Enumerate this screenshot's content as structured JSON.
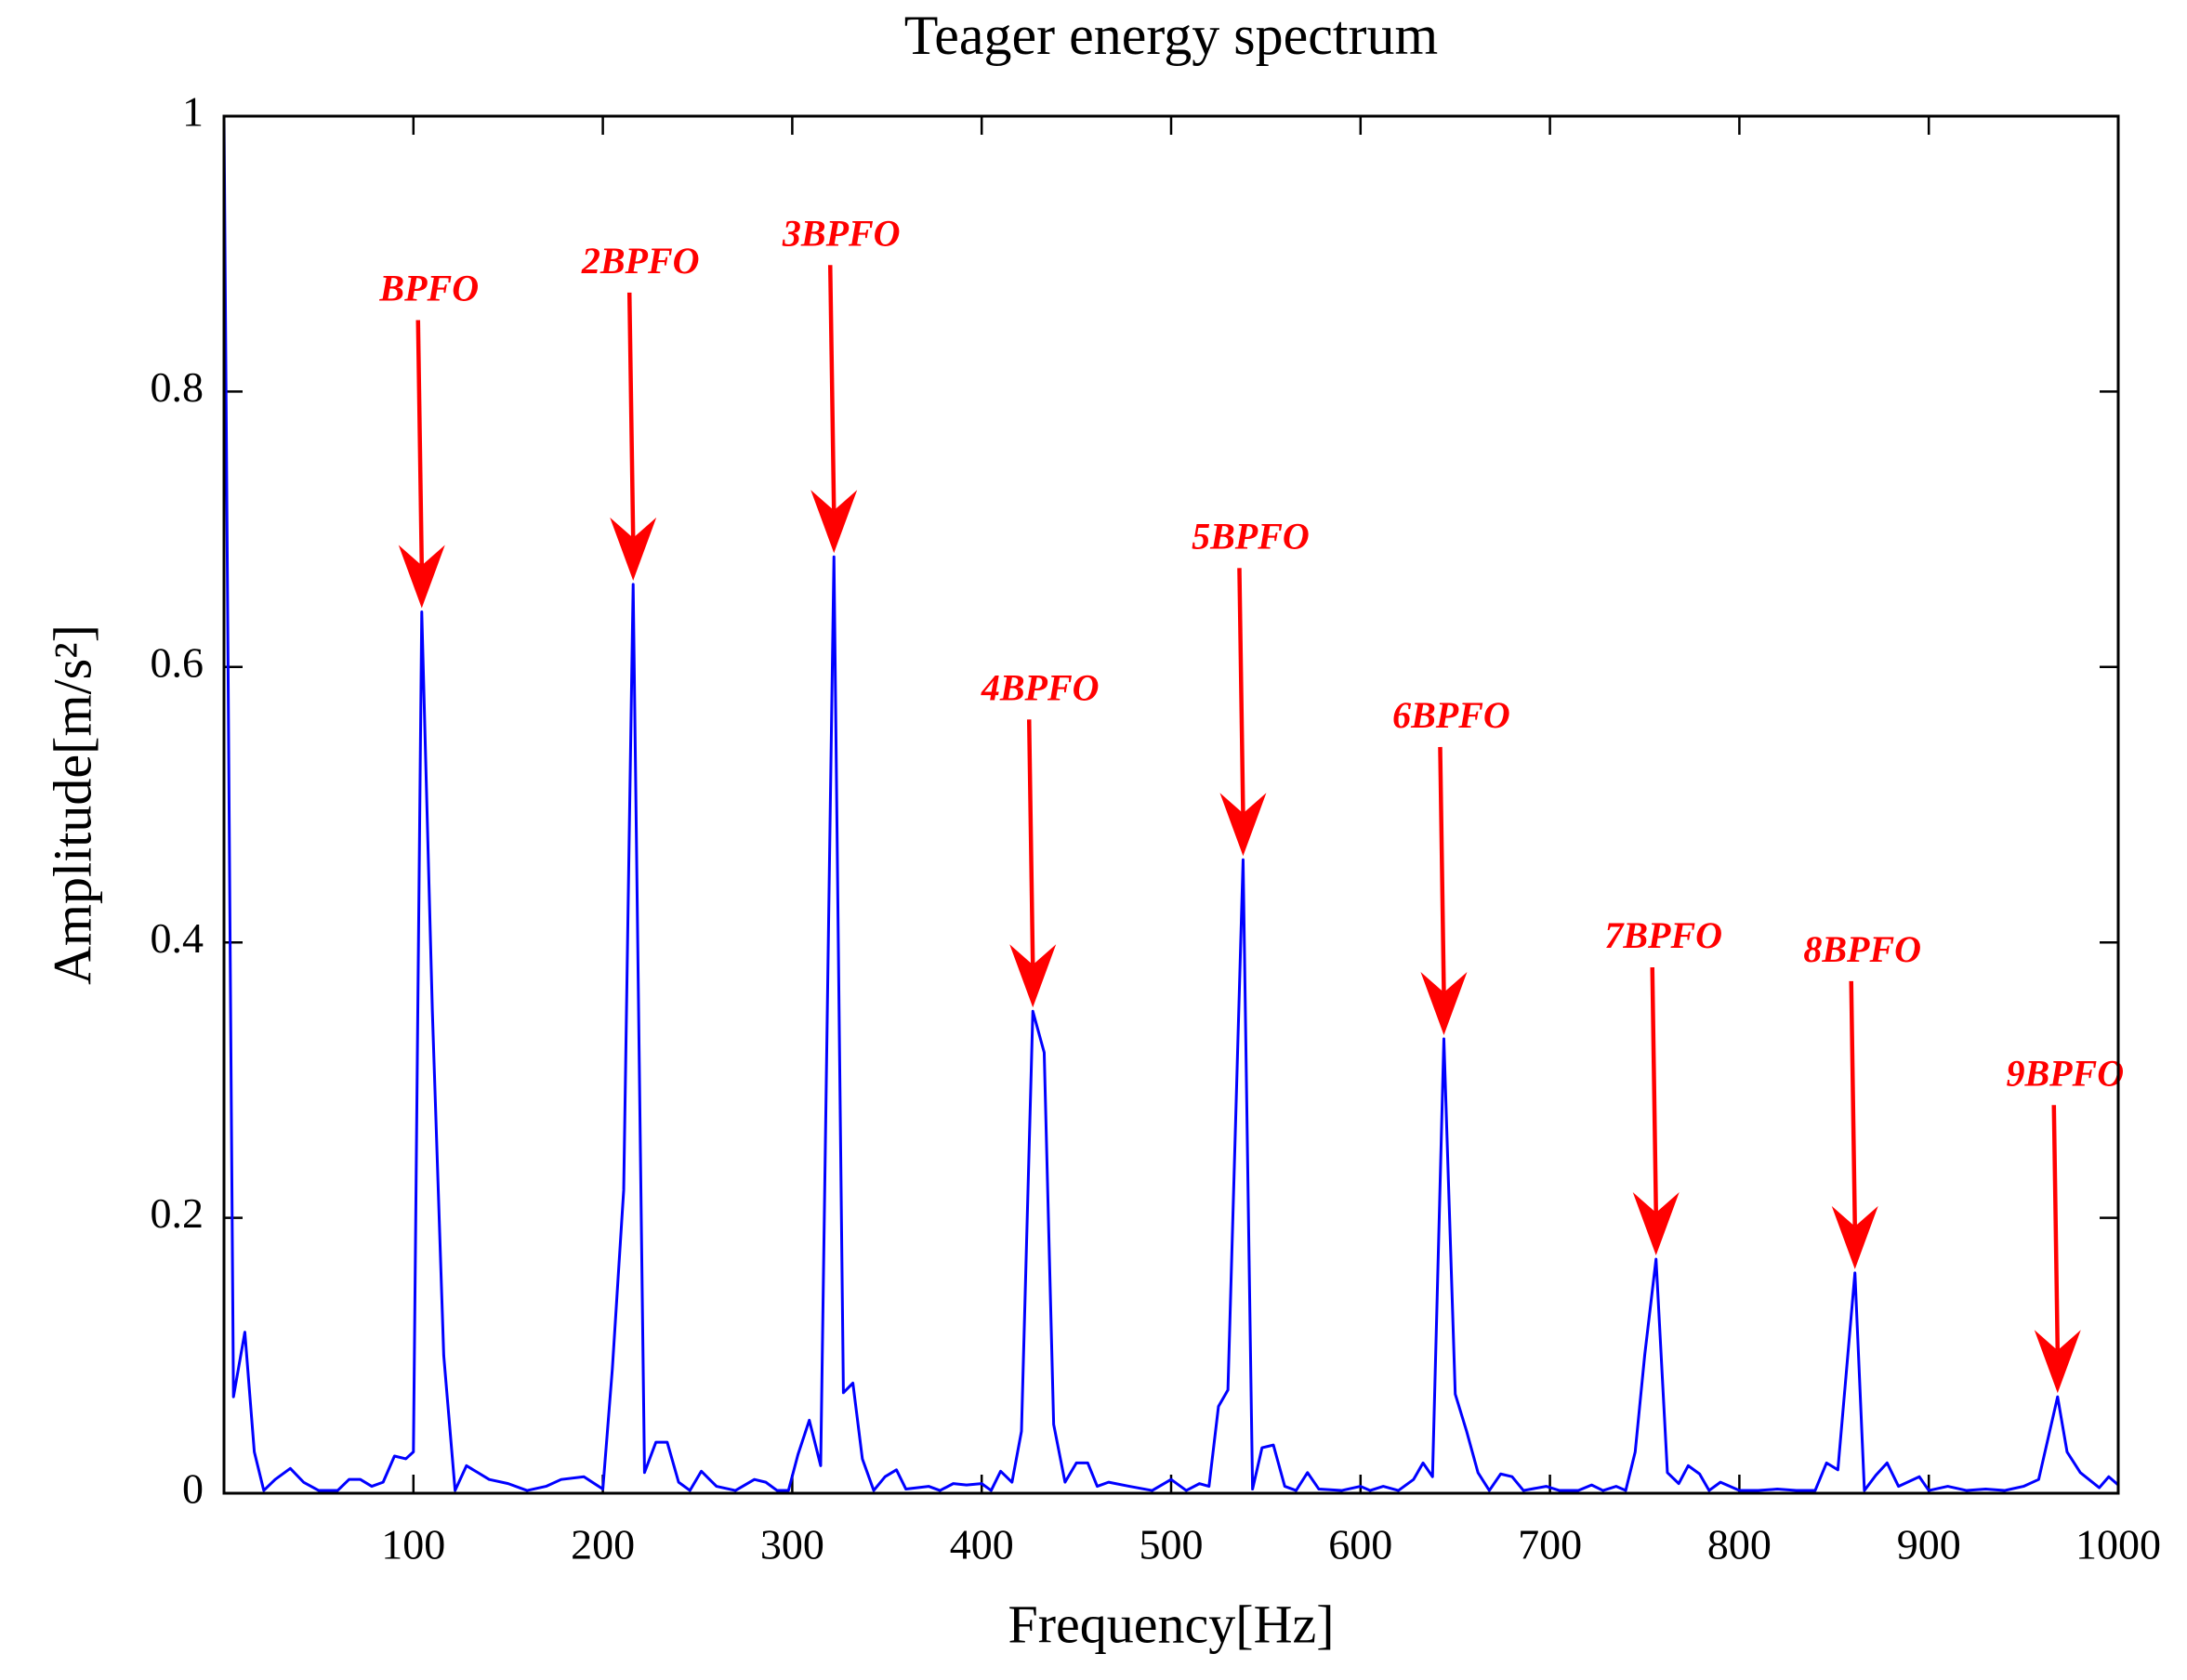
{
  "chart_data": {
    "type": "line",
    "title": "Teager energy spectrum",
    "xlabel": "Frequency[Hz]",
    "ylabel": "Amplitude[m/s²]",
    "xlim": [
      0,
      1000
    ],
    "ylim": [
      0,
      1
    ],
    "xticks": [
      100,
      200,
      300,
      400,
      500,
      600,
      700,
      800,
      900,
      1000
    ],
    "yticks": [
      0,
      0.2,
      0.4,
      0.6,
      0.8,
      1
    ],
    "grid": false,
    "x": [
      0,
      5,
      11,
      16,
      21,
      27,
      35,
      42,
      50,
      60,
      66,
      72,
      78,
      84,
      90,
      96,
      100,
      104.4,
      110,
      116,
      122,
      128,
      134,
      140,
      150,
      160,
      170,
      178,
      190,
      200,
      205,
      211,
      216,
      222,
      228,
      234,
      240,
      246,
      252,
      260,
      270,
      280,
      286,
      292,
      298,
      303,
      309,
      315,
      322,
      327,
      332,
      337,
      343,
      349,
      355,
      360,
      372,
      378,
      385,
      392,
      400,
      405,
      410,
      416,
      421,
      427,
      433,
      438,
      444,
      450,
      456,
      461,
      467,
      478,
      490,
      500,
      508,
      515,
      520,
      525,
      530,
      538,
      543,
      548,
      554,
      560,
      566,
      572,
      578,
      590,
      600,
      605,
      612,
      620,
      628,
      633,
      638,
      644,
      650,
      656,
      662,
      668,
      674,
      680,
      686,
      698,
      705,
      715,
      722,
      728,
      735,
      740,
      745,
      750,
      756,
      762,
      768,
      773,
      779,
      784,
      790,
      800,
      810,
      820,
      830,
      840,
      846,
      852,
      861,
      866,
      872,
      878,
      884,
      895,
      900,
      910,
      920,
      930,
      940,
      950,
      958,
      968,
      973,
      980,
      990,
      995,
      1000
    ],
    "series": [
      {
        "color": "#0000ff",
        "values": [
          1.0,
          0.07,
          0.117,
          0.03,
          0.002,
          0.01,
          0.018,
          0.008,
          0.002,
          0.002,
          0.01,
          0.01,
          0.005,
          0.008,
          0.027,
          0.025,
          0.03,
          0.64,
          0.35,
          0.1,
          0.002,
          0.02,
          0.015,
          0.01,
          0.007,
          0.002,
          0.005,
          0.01,
          0.012,
          0.003,
          0.09,
          0.22,
          0.66,
          0.015,
          0.037,
          0.037,
          0.008,
          0.002,
          0.016,
          0.005,
          0.002,
          0.01,
          0.008,
          0.002,
          0.002,
          0.028,
          0.053,
          0.02,
          0.68,
          0.073,
          0.08,
          0.025,
          0.002,
          0.012,
          0.017,
          0.003,
          0.005,
          0.002,
          0.007,
          0.006,
          0.007,
          0.002,
          0.016,
          0.008,
          0.045,
          0.35,
          0.32,
          0.05,
          0.008,
          0.022,
          0.022,
          0.005,
          0.008,
          0.005,
          0.002,
          0.01,
          0.002,
          0.007,
          0.005,
          0.063,
          0.075,
          0.46,
          0.003,
          0.033,
          0.035,
          0.005,
          0.002,
          0.015,
          0.003,
          0.002,
          0.005,
          0.002,
          0.005,
          0.002,
          0.01,
          0.022,
          0.012,
          0.33,
          0.072,
          0.045,
          0.015,
          0.002,
          0.014,
          0.012,
          0.002,
          0.005,
          0.002,
          0.002,
          0.006,
          0.002,
          0.005,
          0.002,
          0.03,
          0.1,
          0.17,
          0.015,
          0.007,
          0.02,
          0.014,
          0.002,
          0.008,
          0.002,
          0.002,
          0.003,
          0.002,
          0.002,
          0.022,
          0.017,
          0.16,
          0.002,
          0.013,
          0.022,
          0.005,
          0.012,
          0.002,
          0.005,
          0.002,
          0.003,
          0.002,
          0.005,
          0.01,
          0.07,
          0.03,
          0.015,
          0.004,
          0.012,
          0.006
        ]
      }
    ],
    "annotations": [
      {
        "text": "BPFO",
        "x": 104.4,
        "y": 0.64,
        "color": "#ff0000"
      },
      {
        "text": "2BPFO",
        "x": 216,
        "y": 0.66,
        "color": "#ff0000"
      },
      {
        "text": "3BPFO",
        "x": 322,
        "y": 0.68,
        "color": "#ff0000"
      },
      {
        "text": "4BPFO",
        "x": 427,
        "y": 0.35,
        "color": "#ff0000"
      },
      {
        "text": "5BPFO",
        "x": 538,
        "y": 0.46,
        "color": "#ff0000"
      },
      {
        "text": "6BPFO",
        "x": 644,
        "y": 0.33,
        "color": "#ff0000"
      },
      {
        "text": "7BPFO",
        "x": 756,
        "y": 0.17,
        "color": "#ff0000"
      },
      {
        "text": "8BPFO",
        "x": 861,
        "y": 0.16,
        "color": "#ff0000"
      },
      {
        "text": "9BPFO",
        "x": 968,
        "y": 0.07,
        "color": "#ff0000"
      }
    ]
  }
}
